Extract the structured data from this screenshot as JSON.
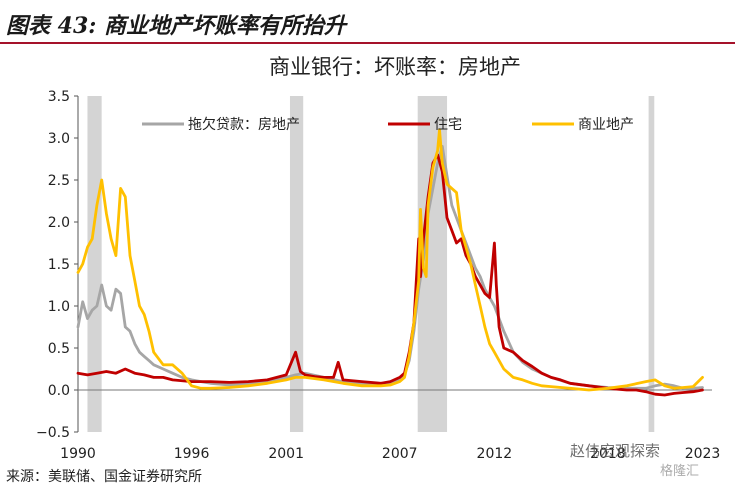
{
  "figure": {
    "label": "图表 43: 商业地产坏账率有所抬升",
    "source": "来源：美联储、国金证券研究所"
  },
  "watermark": {
    "text": "赵伟宏观探索",
    "sub": "格隆汇"
  },
  "colors": {
    "header_rule": "#a5122a",
    "shade": "#d4d4d4"
  },
  "chart_data": {
    "type": "line",
    "title": "商业银行：坏账率：房地产",
    "xlabel": "",
    "ylabel": "",
    "xlim": [
      1990,
      2023.5
    ],
    "ylim": [
      -0.5,
      3.5
    ],
    "yticks": [
      -0.5,
      0.0,
      0.5,
      1.0,
      1.5,
      2.0,
      2.5,
      3.0,
      3.5
    ],
    "ytick_labels": [
      "−0.5",
      "0.0",
      "0.5",
      "1.0",
      "1.5",
      "2.0",
      "2.5",
      "3.0",
      "3.5"
    ],
    "xticks": [
      1990,
      1996,
      2001,
      2007,
      2012,
      2018,
      2023
    ],
    "xtick_labels": [
      "1990",
      "1996",
      "2001",
      "2007",
      "2012",
      "2018",
      "2023"
    ],
    "grid": false,
    "legend_position": "top",
    "recessions": [
      [
        1990.5,
        1991.25
      ],
      [
        2001.2,
        2001.9
      ],
      [
        2007.95,
        2009.5
      ],
      [
        2020.15,
        2020.45
      ]
    ],
    "series": [
      {
        "name": "拖欠贷款：房地产",
        "color": "#a6a6a6",
        "x": [
          1990.0,
          1990.25,
          1990.5,
          1990.75,
          1991.0,
          1991.25,
          1991.5,
          1991.75,
          1992.0,
          1992.25,
          1992.5,
          1992.75,
          1993.0,
          1993.25,
          1993.5,
          1993.75,
          1994.0,
          1994.5,
          1995.0,
          1995.5,
          1996.0,
          1996.5,
          1997.0,
          1998.0,
          1999.0,
          2000.0,
          2001.0,
          2001.5,
          2002.0,
          2003.0,
          2004.0,
          2005.0,
          2006.0,
          2006.5,
          2007.0,
          2007.25,
          2007.5,
          2007.75,
          2008.0,
          2008.25,
          2008.5,
          2008.75,
          2009.0,
          2009.25,
          2009.5,
          2009.75,
          2010.0,
          2010.25,
          2010.5,
          2010.75,
          2011.0,
          2011.25,
          2011.5,
          2011.75,
          2012.0,
          2012.5,
          2013.0,
          2013.5,
          2014.0,
          2014.5,
          2015.0,
          2016.0,
          2017.0,
          2018.0,
          2019.0,
          2020.0,
          2020.5,
          2021.0,
          2021.5,
          2022.0,
          2022.5,
          2023.0
        ],
        "y": [
          0.75,
          1.05,
          0.85,
          0.95,
          1.0,
          1.25,
          1.0,
          0.95,
          1.2,
          1.15,
          0.75,
          0.7,
          0.55,
          0.45,
          0.4,
          0.35,
          0.3,
          0.25,
          0.2,
          0.15,
          0.12,
          0.1,
          0.08,
          0.06,
          0.08,
          0.1,
          0.15,
          0.18,
          0.2,
          0.15,
          0.1,
          0.08,
          0.07,
          0.08,
          0.12,
          0.18,
          0.35,
          0.7,
          1.2,
          1.55,
          2.1,
          2.4,
          2.7,
          2.9,
          2.55,
          2.2,
          2.05,
          1.9,
          1.75,
          1.6,
          1.45,
          1.35,
          1.2,
          1.1,
          1.0,
          0.7,
          0.45,
          0.33,
          0.25,
          0.2,
          0.15,
          0.08,
          0.05,
          0.03,
          0.02,
          0.02,
          0.05,
          0.07,
          0.05,
          0.02,
          0.02,
          0.03
        ]
      },
      {
        "name": "住宅",
        "color": "#c00000",
        "x": [
          1990.0,
          1990.5,
          1991.0,
          1991.5,
          1992.0,
          1992.5,
          1993.0,
          1993.5,
          1994.0,
          1994.5,
          1995.0,
          1996.0,
          1997.0,
          1998.0,
          1999.0,
          2000.0,
          2001.0,
          2001.5,
          2001.75,
          2002.0,
          2002.5,
          2003.0,
          2003.5,
          2003.75,
          2004.0,
          2005.0,
          2006.0,
          2006.5,
          2007.0,
          2007.25,
          2007.5,
          2007.75,
          2008.0,
          2008.1,
          2008.25,
          2008.5,
          2008.75,
          2009.0,
          2009.25,
          2009.5,
          2009.75,
          2010.0,
          2010.25,
          2010.5,
          2010.75,
          2011.0,
          2011.25,
          2011.5,
          2011.75,
          2012.0,
          2012.1,
          2012.25,
          2012.5,
          2013.0,
          2013.5,
          2014.0,
          2014.5,
          2015.0,
          2015.5,
          2016.0,
          2017.0,
          2018.0,
          2019.0,
          2019.5,
          2020.0,
          2020.5,
          2021.0,
          2021.5,
          2022.0,
          2022.5,
          2023.0
        ],
        "y": [
          0.2,
          0.18,
          0.2,
          0.22,
          0.2,
          0.25,
          0.2,
          0.18,
          0.15,
          0.15,
          0.12,
          0.1,
          0.1,
          0.09,
          0.1,
          0.12,
          0.18,
          0.45,
          0.22,
          0.18,
          0.16,
          0.15,
          0.15,
          0.33,
          0.12,
          0.1,
          0.08,
          0.1,
          0.15,
          0.2,
          0.45,
          0.8,
          1.8,
          1.35,
          1.8,
          2.3,
          2.7,
          2.8,
          2.6,
          2.05,
          1.9,
          1.75,
          1.8,
          1.6,
          1.5,
          1.35,
          1.25,
          1.15,
          1.1,
          1.75,
          1.25,
          0.75,
          0.5,
          0.45,
          0.35,
          0.28,
          0.2,
          0.15,
          0.12,
          0.08,
          0.05,
          0.02,
          0.0,
          0.0,
          -0.02,
          -0.05,
          -0.06,
          -0.04,
          -0.03,
          -0.02,
          0.0
        ]
      },
      {
        "name": "商业地产",
        "color": "#ffc000",
        "x": [
          1990.0,
          1990.25,
          1990.5,
          1990.75,
          1991.0,
          1991.25,
          1991.5,
          1991.75,
          1992.0,
          1992.25,
          1992.5,
          1992.75,
          1993.0,
          1993.25,
          1993.5,
          1993.75,
          1994.0,
          1994.5,
          1995.0,
          1995.5,
          1996.0,
          1996.5,
          1997.0,
          1998.0,
          1999.0,
          2000.0,
          2001.0,
          2001.5,
          2002.0,
          2003.0,
          2004.0,
          2005.0,
          2006.0,
          2006.5,
          2007.0,
          2007.25,
          2007.5,
          2007.75,
          2008.0,
          2008.1,
          2008.25,
          2008.4,
          2008.5,
          2008.75,
          2009.0,
          2009.1,
          2009.25,
          2009.5,
          2009.75,
          2010.0,
          2010.25,
          2010.5,
          2010.75,
          2011.0,
          2011.25,
          2011.5,
          2011.75,
          2012.0,
          2012.5,
          2013.0,
          2013.5,
          2014.0,
          2014.5,
          2015.0,
          2016.0,
          2017.0,
          2018.0,
          2019.0,
          2020.0,
          2020.5,
          2021.0,
          2021.5,
          2022.0,
          2022.5,
          2023.0
        ],
        "y": [
          1.4,
          1.5,
          1.7,
          1.8,
          2.2,
          2.5,
          2.1,
          1.8,
          1.6,
          2.4,
          2.3,
          1.6,
          1.3,
          1.0,
          0.9,
          0.7,
          0.45,
          0.3,
          0.3,
          0.2,
          0.05,
          0.02,
          0.02,
          0.03,
          0.05,
          0.08,
          0.12,
          0.15,
          0.15,
          0.12,
          0.08,
          0.05,
          0.05,
          0.06,
          0.1,
          0.15,
          0.4,
          0.8,
          1.3,
          2.15,
          1.45,
          1.35,
          2.2,
          2.65,
          2.85,
          3.1,
          2.7,
          2.45,
          2.4,
          2.35,
          1.9,
          1.7,
          1.5,
          1.25,
          1.0,
          0.75,
          0.55,
          0.45,
          0.25,
          0.15,
          0.12,
          0.08,
          0.05,
          0.04,
          0.02,
          0.0,
          0.02,
          0.05,
          0.1,
          0.12,
          0.05,
          0.02,
          0.03,
          0.04,
          0.15
        ]
      }
    ]
  }
}
